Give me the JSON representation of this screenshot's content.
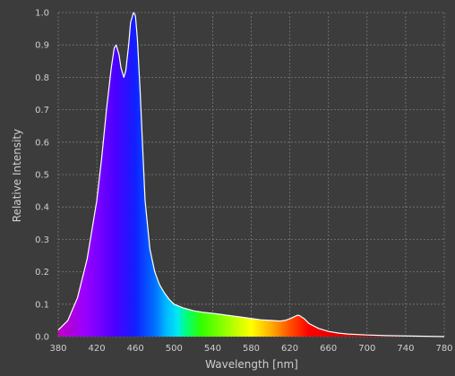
{
  "chart_data": {
    "type": "area",
    "xlabel": "Wavelength [nm]",
    "ylabel": "Relative Intensity",
    "xlim": [
      380,
      780
    ],
    "ylim": [
      0,
      1.0
    ],
    "x_ticks": [
      380,
      420,
      460,
      500,
      540,
      580,
      620,
      660,
      700,
      740,
      780
    ],
    "y_ticks": [
      0.0,
      0.1,
      0.2,
      0.3,
      0.4,
      0.5,
      0.6,
      0.7,
      0.8,
      0.9,
      1.0
    ],
    "y_tick_labels": [
      "0.0",
      "0.1",
      "0.2",
      "0.3",
      "0.4",
      "0.5",
      "0.6",
      "0.7",
      "0.8",
      "0.9",
      "1.0"
    ],
    "grid": true,
    "fill": "visible-spectrum gradient",
    "series": [
      {
        "x": [
          380,
          390,
          400,
          410,
          420,
          425,
          430,
          435,
          438,
          440,
          443,
          445,
          448,
          450,
          453,
          455,
          458,
          460,
          462,
          465,
          468,
          470,
          475,
          480,
          485,
          490,
          495,
          500,
          510,
          520,
          530,
          540,
          550,
          560,
          570,
          580,
          590,
          600,
          610,
          615,
          620,
          625,
          628,
          630,
          635,
          640,
          650,
          660,
          670,
          680,
          700,
          720,
          740,
          760,
          780
        ],
        "y": [
          0.02,
          0.05,
          0.12,
          0.24,
          0.42,
          0.55,
          0.7,
          0.83,
          0.89,
          0.9,
          0.87,
          0.83,
          0.8,
          0.82,
          0.9,
          0.97,
          1.0,
          0.99,
          0.92,
          0.75,
          0.55,
          0.42,
          0.27,
          0.2,
          0.16,
          0.135,
          0.115,
          0.1,
          0.088,
          0.08,
          0.075,
          0.072,
          0.068,
          0.064,
          0.06,
          0.056,
          0.052,
          0.05,
          0.048,
          0.05,
          0.055,
          0.062,
          0.066,
          0.065,
          0.055,
          0.04,
          0.025,
          0.016,
          0.011,
          0.008,
          0.005,
          0.003,
          0.002,
          0.001,
          0.0
        ]
      }
    ]
  },
  "colors": {
    "background": "#3c3c3c",
    "curve_outline": "#ffffff"
  }
}
